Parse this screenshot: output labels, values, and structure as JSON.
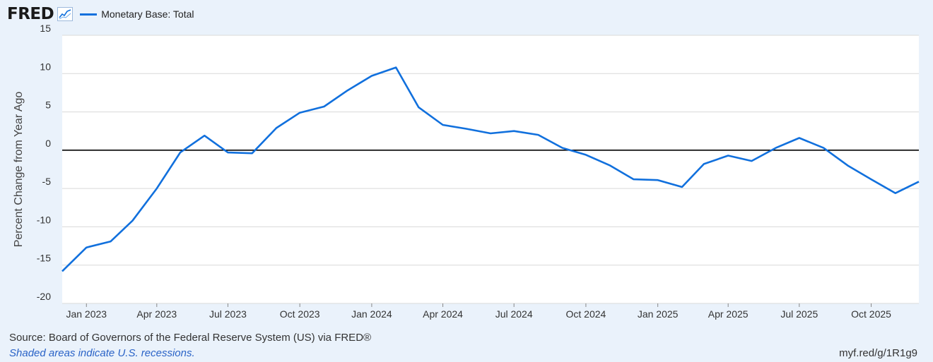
{
  "header": {
    "logo_text": "FRED",
    "legend_label": "Monetary Base: Total"
  },
  "footer": {
    "source": "Source: Board of Governors of the Federal Reserve System (US) via FRED®",
    "recession_note": "Shaded areas indicate U.S. recessions.",
    "link": "myf.red/g/1R1g9"
  },
  "colors": {
    "series": "#1170dd",
    "plot_bg": "#ffffff",
    "page_bg": "#eaf2fb",
    "grid": "#d9d9d9",
    "zero_line": "#000000"
  },
  "chart_data": {
    "type": "line",
    "ylabel": "Percent Change from Year Ago",
    "ylim": [
      -20,
      15
    ],
    "yticks": [
      15,
      10,
      5,
      0,
      -5,
      -10,
      -15,
      -20
    ],
    "xlim": [
      "2022-12-01",
      "2025-12-01"
    ],
    "xticks": [
      {
        "date": "2023-01-01",
        "label": "Jan 2023"
      },
      {
        "date": "2023-04-01",
        "label": "Apr 2023"
      },
      {
        "date": "2023-07-01",
        "label": "Jul 2023"
      },
      {
        "date": "2023-10-01",
        "label": "Oct 2023"
      },
      {
        "date": "2024-01-01",
        "label": "Jan 2024"
      },
      {
        "date": "2024-04-01",
        "label": "Apr 2024"
      },
      {
        "date": "2024-07-01",
        "label": "Jul 2024"
      },
      {
        "date": "2024-10-01",
        "label": "Oct 2024"
      },
      {
        "date": "2025-01-01",
        "label": "Jan 2025"
      },
      {
        "date": "2025-04-01",
        "label": "Apr 2025"
      },
      {
        "date": "2025-07-01",
        "label": "Jul 2025"
      },
      {
        "date": "2025-10-01",
        "label": "Oct 2025"
      }
    ],
    "grid": true,
    "series": [
      {
        "x": [
          "2022-12-01",
          "2023-01-01",
          "2023-02-01",
          "2023-03-01",
          "2023-04-01",
          "2023-05-01",
          "2023-06-01",
          "2023-07-01",
          "2023-08-01",
          "2023-09-01",
          "2023-10-01",
          "2023-11-01",
          "2023-12-01",
          "2024-01-01",
          "2024-02-01",
          "2024-03-01",
          "2024-04-01",
          "2024-05-01",
          "2024-06-01",
          "2024-07-01",
          "2024-08-01",
          "2024-09-01",
          "2024-10-01",
          "2024-11-01",
          "2024-12-01",
          "2025-01-01",
          "2025-02-01",
          "2025-03-01",
          "2025-04-01",
          "2025-05-01",
          "2025-06-01",
          "2025-07-01",
          "2025-08-01",
          "2025-09-01",
          "2025-10-01",
          "2025-11-01",
          "2025-12-01"
        ],
        "values": [
          -15.8,
          -12.7,
          -11.9,
          -9.2,
          -5.0,
          -0.3,
          1.9,
          -0.3,
          -0.4,
          2.9,
          4.9,
          5.7,
          7.8,
          9.7,
          10.8,
          5.6,
          3.3,
          2.8,
          2.2,
          2.5,
          2.0,
          0.3,
          -0.6,
          -2.0,
          -3.8,
          -3.9,
          -4.8,
          -1.8,
          -0.7,
          -1.4,
          0.3,
          1.6,
          0.3,
          -2.0,
          -3.8,
          -5.6,
          -4.1
        ]
      }
    ]
  }
}
